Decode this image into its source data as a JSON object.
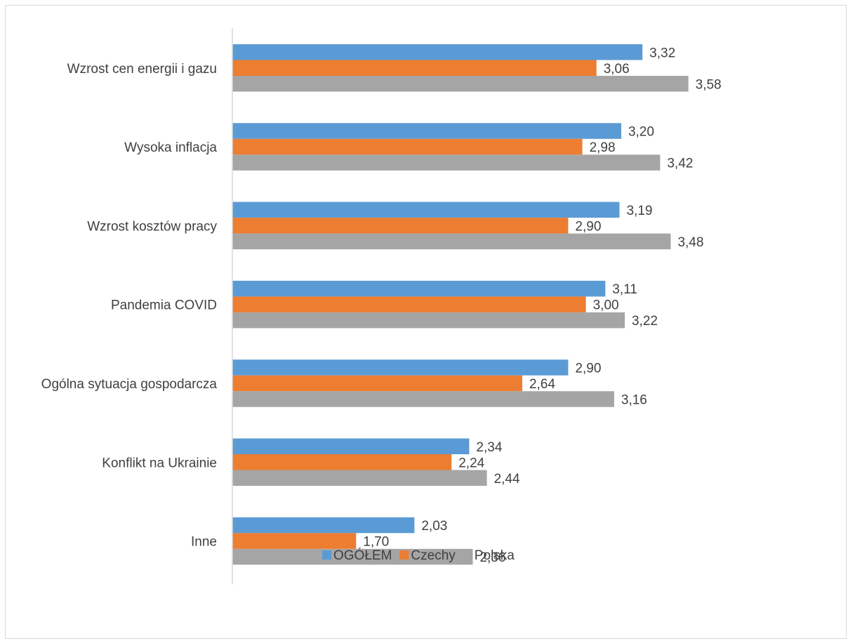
{
  "chart_data": {
    "type": "bar",
    "orientation": "horizontal",
    "categories": [
      "Wzrost cen energii i gazu",
      "Wysoka inflacja",
      "Wzrost kosztów pracy",
      "Pandemia COVID",
      "Ogólna sytuacja gospodarcza",
      "Konflikt na Ukrainie",
      "Inne"
    ],
    "series": [
      {
        "name": "OGÓŁEM",
        "color": "#5b9bd5",
        "values": [
          3.32,
          3.2,
          3.19,
          3.11,
          2.9,
          2.34,
          2.03
        ],
        "labels": [
          "3,32",
          "3,20",
          "3,19",
          "3,11",
          "2,90",
          "2,34",
          "2,03"
        ]
      },
      {
        "name": "Czechy",
        "color": "#ed7d31",
        "values": [
          3.06,
          2.98,
          2.9,
          3.0,
          2.64,
          2.24,
          1.7
        ],
        "labels": [
          "3,06",
          "2,98",
          "2,90",
          "3,00",
          "2,64",
          "2,24",
          "1,70"
        ]
      },
      {
        "name": "Polska",
        "color": "#a5a5a5",
        "values": [
          3.58,
          3.42,
          3.48,
          3.22,
          3.16,
          2.44,
          2.36
        ],
        "labels": [
          "3,58",
          "3,42",
          "3,48",
          "3,22",
          "3,16",
          "2,44",
          "2,36"
        ]
      }
    ],
    "xlim": [
      1.0,
      3.6
    ],
    "grid": false,
    "legend_position": "bottom"
  }
}
